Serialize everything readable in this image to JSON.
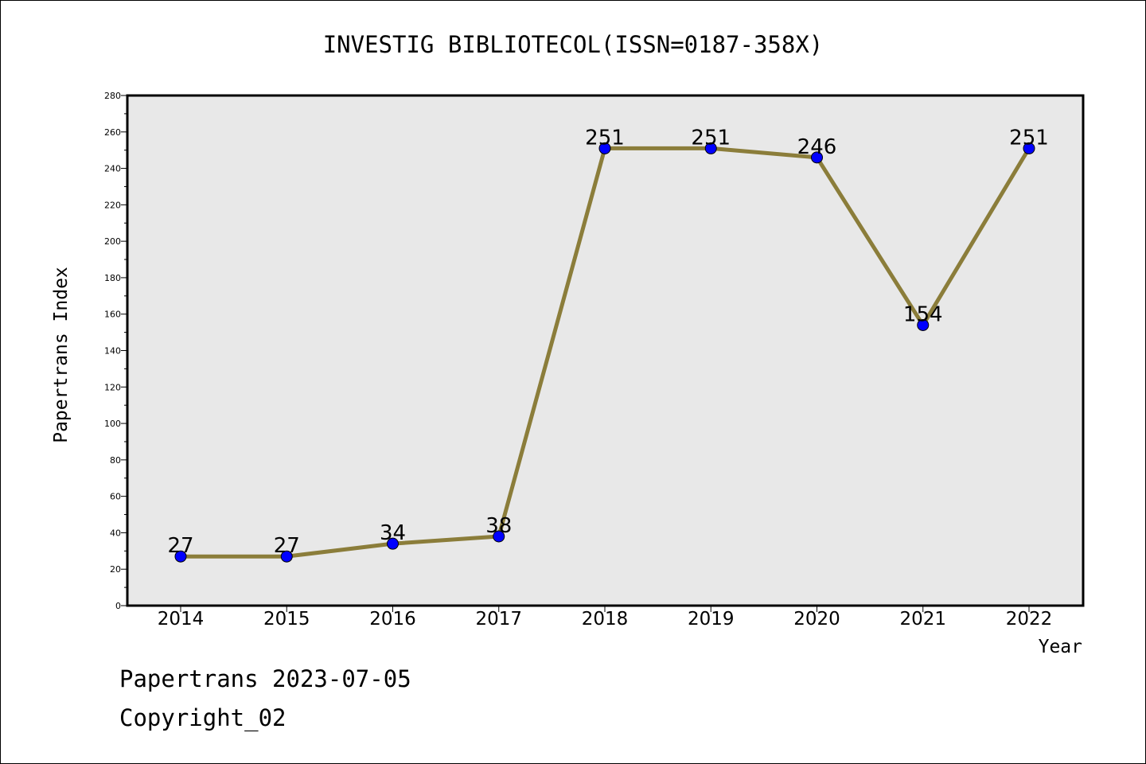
{
  "chart_data": {
    "type": "line",
    "title": "INVESTIG BIBLIOTECOL(ISSN=0187-358X)",
    "xlabel": "Year",
    "ylabel": "Papertrans Index",
    "categories": [
      "2014",
      "2015",
      "2016",
      "2017",
      "2018",
      "2019",
      "2020",
      "2021",
      "2022"
    ],
    "series": [
      {
        "values": [
          27,
          27,
          34,
          38,
          251,
          251,
          246,
          154,
          251
        ]
      }
    ],
    "data_labels": [
      "27",
      "27",
      "34",
      "38",
      "251",
      "251",
      "246",
      "154",
      "251"
    ],
    "ylim": [
      0,
      280
    ],
    "yticks": [
      0,
      20,
      40,
      60,
      80,
      100,
      120,
      140,
      160,
      180,
      200,
      220,
      240,
      260,
      280
    ],
    "grid": false,
    "colors": {
      "line": "#8b7d3a",
      "marker": "#0000ff",
      "plot_background": "#e8e8e8"
    }
  },
  "footer": {
    "date_text": "Papertrans 2023-07-05",
    "copyright_text": "Copyright_02"
  }
}
